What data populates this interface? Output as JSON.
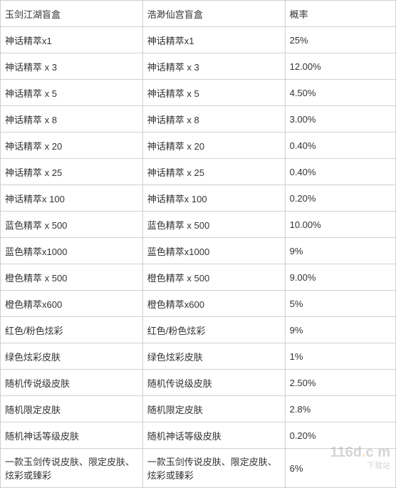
{
  "table": {
    "columns": [
      "玉剑江湖盲盒",
      "浩渺仙宫盲盒",
      "概率"
    ],
    "rows": [
      [
        "神话精萃x1",
        "神话精萃x1",
        "25%"
      ],
      [
        "神话精萃 x 3",
        "神话精萃 x 3",
        "12.00%"
      ],
      [
        "神话精萃 x 5",
        "神话精萃 x 5",
        "4.50%"
      ],
      [
        "神话精萃 x 8",
        "神话精萃 x 8",
        "3.00%"
      ],
      [
        "神话精萃 x 20",
        "神话精萃 x 20",
        "0.40%"
      ],
      [
        "神话精萃 x 25",
        "神话精萃 x 25",
        "0.40%"
      ],
      [
        "神话精萃x 100",
        "神话精萃x 100",
        "0.20%"
      ],
      [
        "蓝色精萃 x 500",
        "蓝色精萃 x 500",
        "10.00%"
      ],
      [
        "蓝色精萃x1000",
        "蓝色精萃x1000",
        "9%"
      ],
      [
        "橙色精萃 x 500",
        "橙色精萃 x 500",
        "9.00%"
      ],
      [
        "橙色精萃x600",
        "橙色精萃x600",
        "5%"
      ],
      [
        "红色/粉色炫彩",
        "红色/粉色炫彩",
        "9%"
      ],
      [
        "绿色炫彩皮肤",
        "绿色炫彩皮肤",
        "1%"
      ],
      [
        "随机传说级皮肤",
        "随机传说级皮肤",
        "2.50%"
      ],
      [
        "随机限定皮肤",
        "随机限定皮肤",
        "2.8%"
      ],
      [
        "随机神话等级皮肤",
        "随机神话等级皮肤",
        "0.20%"
      ],
      [
        "一款玉剑传说皮肤、限定皮肤、炫彩或臻彩",
        "一款玉剑传说皮肤、限定皮肤、炫彩或臻彩",
        "6%"
      ]
    ],
    "border_color": "#d0d0d0",
    "text_color": "#333333",
    "font_size": 13,
    "background_color": "#ffffff"
  },
  "watermark": {
    "brand": "116d",
    "suffix": "c m",
    "subtitle": "下载站"
  }
}
